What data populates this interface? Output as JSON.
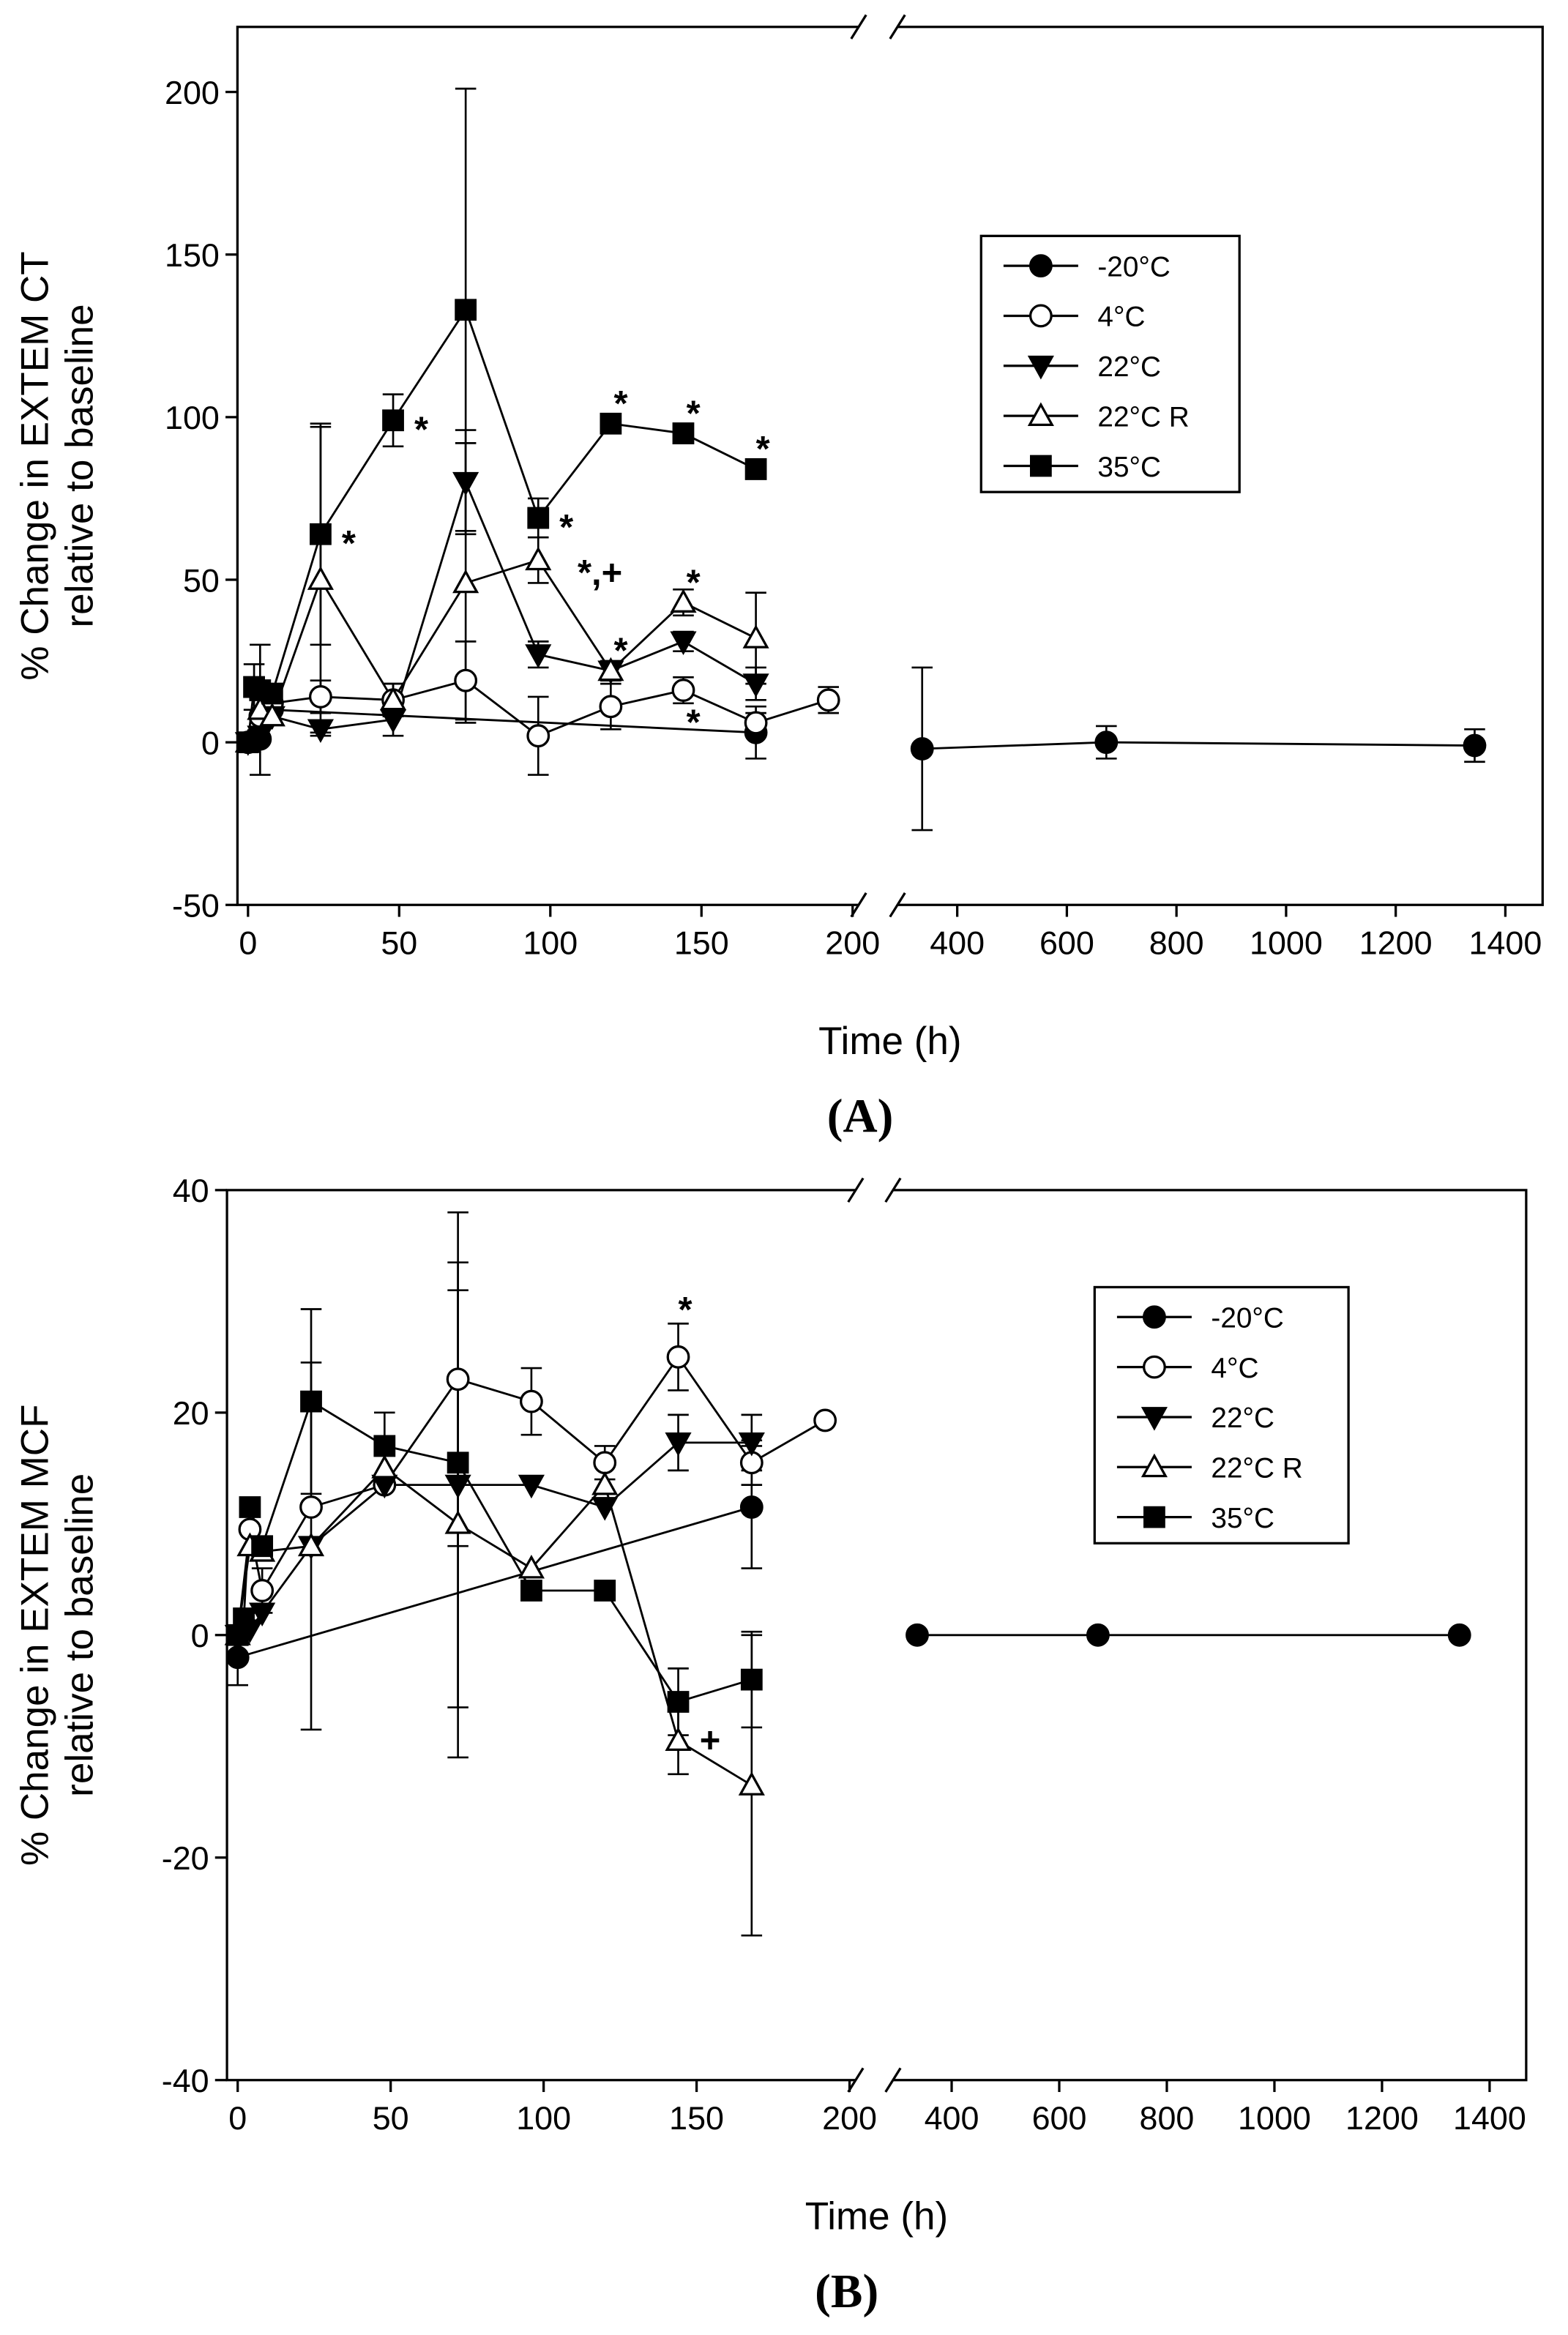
{
  "chart_data": [
    {
      "type": "line",
      "panel_label": "(A)",
      "ylabel": [
        "% Change in EXTEM CT",
        "relative to baseline"
      ],
      "xlabel": "Time (h)",
      "xlim": [
        [
          -3.5,
          202
        ],
        [
          291,
          1468
        ]
      ],
      "xticks": [
        0,
        50,
        100,
        150,
        200,
        400,
        600,
        800,
        1000,
        1200,
        1400
      ],
      "ylim": [
        -50,
        220
      ],
      "yticks": [
        -50,
        0,
        50,
        100,
        150,
        200
      ],
      "legend": "right",
      "series": [
        {
          "name": "-20°C",
          "color": "#000000",
          "marker": "circle",
          "filled": true,
          "x": [
            0,
            4,
            8,
            168,
            336,
            672,
            1344
          ],
          "values": [
            0,
            1,
            10,
            3,
            -2,
            0,
            -1
          ],
          "errors": [
            null,
            null,
            null,
            8,
            25,
            5,
            5
          ]
        },
        {
          "name": "4°C",
          "color": "#000000",
          "marker": "circle",
          "filled": false,
          "x": [
            0,
            4,
            8,
            24,
            48,
            72,
            96,
            120,
            144,
            168,
            192
          ],
          "values": [
            0,
            8,
            12,
            14,
            13,
            19,
            2,
            11,
            16,
            6,
            13
          ],
          "errors": [
            null,
            null,
            null,
            5,
            5,
            12,
            12,
            7,
            4,
            3,
            4
          ]
        },
        {
          "name": "22°C",
          "color": "#000000",
          "marker": "triangle-down",
          "filled": true,
          "x": [
            0,
            4,
            8,
            24,
            48,
            72,
            96,
            120,
            144,
            168
          ],
          "values": [
            0,
            2,
            8,
            4,
            7,
            80,
            27,
            22,
            31,
            18
          ],
          "errors": [
            null,
            null,
            null,
            2,
            5,
            16,
            4,
            3,
            3,
            5
          ]
        },
        {
          "name": "22°C R",
          "color": "#000000",
          "marker": "triangle-up",
          "filled": false,
          "x": [
            0,
            4,
            8,
            24,
            48,
            72,
            96,
            120,
            144,
            168
          ],
          "values": [
            0,
            10,
            8,
            50,
            13,
            49,
            56,
            22,
            43,
            32
          ],
          "errors": [
            null,
            20,
            null,
            47,
            5,
            43,
            7,
            3,
            4,
            14
          ]
        },
        {
          "name": "35°C",
          "color": "#000000",
          "marker": "square",
          "filled": true,
          "x": [
            0,
            2,
            4,
            8,
            24,
            48,
            72,
            96,
            120,
            144,
            168
          ],
          "values": [
            0,
            17,
            16,
            15,
            64,
            99,
            133,
            69,
            98,
            95,
            84
          ],
          "errors": [
            null,
            7,
            null,
            null,
            34,
            8,
            68,
            6,
            2,
            3,
            2
          ]
        }
      ],
      "annotations": [
        {
          "text": "*",
          "x": 31,
          "y": 62
        },
        {
          "text": "*",
          "x": 55,
          "y": 97
        },
        {
          "text": "*",
          "x": 103,
          "y": 67
        },
        {
          "text": "*,+",
          "x": 109,
          "y": 53
        },
        {
          "text": "*",
          "x": 121,
          "y": 105
        },
        {
          "text": "*",
          "x": 145,
          "y": 102
        },
        {
          "text": "*",
          "x": 168,
          "y": 91
        },
        {
          "text": "*",
          "x": 145,
          "y": 50
        },
        {
          "text": "*",
          "x": 121,
          "y": 29
        },
        {
          "text": "*",
          "x": 145,
          "y": 7
        }
      ]
    },
    {
      "type": "line",
      "panel_label": "(B)",
      "ylabel": [
        "% Change in EXTEM MCF",
        "relative to baseline"
      ],
      "xlabel": "Time (h)",
      "xlim": [
        [
          -3.5,
          202
        ],
        [
          291,
          1468
        ]
      ],
      "xticks": [
        0,
        50,
        100,
        150,
        200,
        400,
        600,
        800,
        1000,
        1200,
        1400
      ],
      "ylim": [
        -40,
        40
      ],
      "yticks": [
        -40,
        -20,
        0,
        20,
        40
      ],
      "legend": "right",
      "series": [
        {
          "name": "-20°C",
          "color": "#000000",
          "marker": "circle",
          "filled": true,
          "x": [
            0,
            168,
            336,
            672,
            1344
          ],
          "values": [
            -2,
            11.5,
            0,
            0,
            0
          ],
          "errors": [
            2.5,
            5.5,
            null,
            null,
            null
          ]
        },
        {
          "name": "4°C",
          "color": "#000000",
          "marker": "circle",
          "filled": false,
          "x": [
            0,
            4,
            8,
            24,
            48,
            72,
            96,
            120,
            144,
            168,
            192
          ],
          "values": [
            0,
            9.5,
            4,
            11.5,
            13.5,
            23,
            21,
            15.5,
            25,
            15.5,
            19.3
          ],
          "errors": [
            null,
            null,
            2,
            null,
            null,
            15,
            3,
            1.5,
            3,
            2,
            null
          ]
        },
        {
          "name": "22°C",
          "color": "#000000",
          "marker": "triangle-down",
          "filled": true,
          "x": [
            0,
            4,
            8,
            24,
            48,
            72,
            96,
            120,
            144,
            168
          ],
          "values": [
            0,
            0.5,
            2,
            8,
            13.5,
            13.5,
            13.5,
            11.5,
            17.3,
            17.3
          ],
          "errors": [
            null,
            null,
            null,
            null,
            null,
            20,
            null,
            null,
            2.5,
            2.5
          ]
        },
        {
          "name": "22°C R",
          "color": "#000000",
          "marker": "triangle-up",
          "filled": false,
          "x": [
            0,
            4,
            8,
            24,
            48,
            72,
            96,
            120,
            144,
            168
          ],
          "values": [
            0,
            8,
            7.5,
            8,
            15,
            10,
            6,
            13.5,
            -9.5,
            -13.5
          ],
          "errors": [
            null,
            null,
            null,
            16.5,
            null,
            21,
            null,
            null,
            3,
            13.5
          ]
        },
        {
          "name": "35°C",
          "color": "#000000",
          "marker": "square",
          "filled": true,
          "x": [
            0,
            2,
            4,
            8,
            24,
            48,
            72,
            96,
            120,
            144,
            168
          ],
          "values": [
            0,
            1.5,
            11.5,
            8,
            21,
            17,
            15.5,
            4,
            4,
            -6,
            -4
          ],
          "errors": [
            null,
            null,
            null,
            null,
            8.3,
            3,
            null,
            null,
            null,
            3,
            4.3
          ]
        }
      ],
      "annotations": [
        {
          "text": "*",
          "x": 144,
          "y": 29.5
        },
        {
          "text": "+",
          "x": 151,
          "y": -9.2
        }
      ]
    }
  ]
}
